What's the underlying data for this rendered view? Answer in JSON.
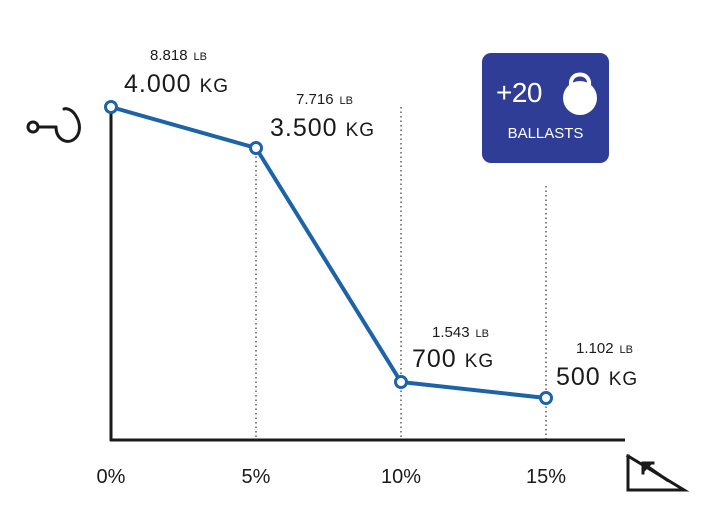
{
  "colors": {
    "line": "#1e63a8",
    "badge": "#2f3d96",
    "axis": "#1a1a1a",
    "grid": "#333333"
  },
  "icons": {
    "y_axis": "tow-hook-icon",
    "x_axis": "incline-slope-icon",
    "badge": "kettlebell-weight-icon"
  },
  "badge": {
    "count": "+20",
    "label": "BALLASTS"
  },
  "chart_data": {
    "type": "line",
    "categories": [
      "0%",
      "5%",
      "10%",
      "15%"
    ],
    "values": [
      4000,
      3500,
      700,
      500
    ],
    "unit": "KG",
    "secondary_unit": "LB",
    "point_labels": [
      {
        "lb": "8.818",
        "lb_unit": "LB",
        "kg": "4.000",
        "kg_unit": "KG"
      },
      {
        "lb": "7.716",
        "lb_unit": "LB",
        "kg": "3.500",
        "kg_unit": "KG"
      },
      {
        "lb": "1.543",
        "lb_unit": "LB",
        "kg": "700",
        "kg_unit": "KG"
      },
      {
        "lb": "1.102",
        "lb_unit": "LB",
        "kg": "500",
        "kg_unit": "KG"
      }
    ],
    "ylim": [
      0,
      4000
    ],
    "grid": "dotted vertical lines at 5%, 10%, 15%",
    "legend": "none",
    "title": "",
    "xlabel": "",
    "ylabel": ""
  }
}
